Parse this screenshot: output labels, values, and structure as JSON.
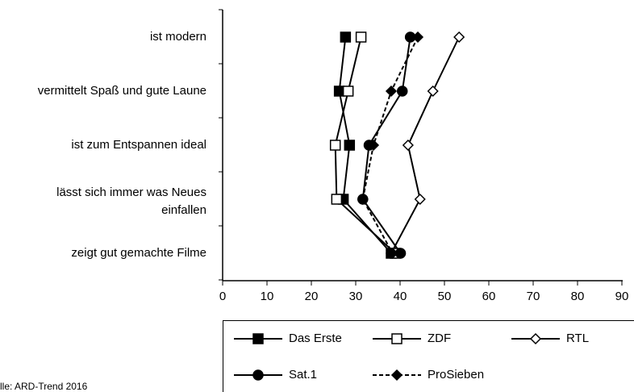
{
  "chart_data": {
    "type": "line",
    "categories": [
      "ist modern",
      "vermittelt Spaß und gute Laune",
      "ist zum Entspannen ideal",
      "lässt sich immer was Neues\neinfallen",
      "zeigt gut gemachte Filme"
    ],
    "series": [
      {
        "name": "Das Erste",
        "color": "#000000",
        "marker": "square",
        "fill": "filled",
        "dash": "solid",
        "values": [
          27.7,
          26.3,
          28.6,
          27.2,
          38
        ]
      },
      {
        "name": "ZDF",
        "color": "#000000",
        "marker": "square",
        "fill": "open",
        "dash": "solid",
        "values": [
          31.2,
          28.3,
          25.4,
          25.7,
          38.9
        ]
      },
      {
        "name": "RTL",
        "color": "#000000",
        "marker": "diamond",
        "fill": "open",
        "dash": "solid",
        "values": [
          53.3,
          47.4,
          41.8,
          44.5,
          38
        ]
      },
      {
        "name": "Sat.1",
        "color": "#000000",
        "marker": "circle",
        "fill": "filled",
        "dash": "solid",
        "values": [
          42.3,
          40.5,
          33,
          31.6,
          40.1
        ]
      },
      {
        "name": "ProSieben",
        "color": "#000000",
        "marker": "diamond",
        "fill": "filled",
        "dash": "dashed",
        "values": [
          44,
          38,
          34,
          31.6,
          38.3
        ]
      }
    ],
    "xlim": [
      0,
      90
    ],
    "xticks": [
      0,
      10,
      20,
      30,
      40,
      50,
      60,
      70,
      80,
      90
    ],
    "source": "lle: ARD-Trend 2016"
  }
}
